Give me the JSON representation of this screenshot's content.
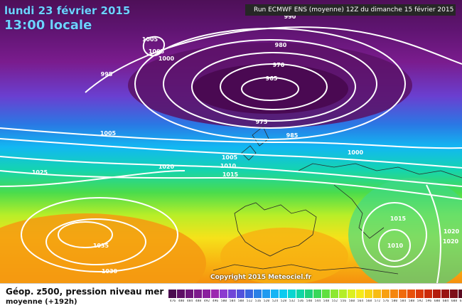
{
  "header": {
    "date": "lundi 23 février 2015",
    "time": "13:00 locale",
    "run": "Run ECMWF ENS (moyenne) 12Z du dimanche 15 février 2015"
  },
  "map": {
    "isobar_labels": [
      "990",
      "1005",
      "1005",
      "1000",
      "995",
      "980",
      "970",
      "965",
      "975",
      "985",
      "1005",
      "1005",
      "1010",
      "1015",
      "1020",
      "1025",
      "1000",
      "1015",
      "1010",
      "1020",
      "1020",
      "1035",
      "1030"
    ],
    "copyright": "Copyright 2015 Meteociel.fr"
  },
  "legend": {
    "title": "Géop. z500, pression niveau mer",
    "subtitle": "moyenne  (+192h)",
    "colors": [
      "#4a0a4f",
      "#5e0e66",
      "#6e147a",
      "#7d1a8c",
      "#8a1f9e",
      "#9c27b0",
      "#8c3bd0",
      "#7046d8",
      "#5252dc",
      "#3a66e0",
      "#2a80e6",
      "#1f9af0",
      "#14b4f5",
      "#0ccbf0",
      "#0ad6d0",
      "#10d6a6",
      "#1ed27c",
      "#38d85a",
      "#60e040",
      "#8ce830",
      "#b4ee28",
      "#dcf020",
      "#f6ea18",
      "#f8d414",
      "#f8bc12",
      "#f8a010",
      "#f5860e",
      "#f06a0c",
      "#e8500a",
      "#dc3a0a",
      "#cc2a0a",
      "#b41c0c",
      "#9a1412",
      "#7e0e18",
      "#5c0a20"
    ],
    "ticks": [
      "476",
      "480",
      "484",
      "488",
      "492",
      "496",
      "500",
      "504",
      "508",
      "512",
      "516",
      "520",
      "524",
      "528",
      "532",
      "536",
      "540",
      "544",
      "548",
      "552",
      "556",
      "560",
      "564",
      "568",
      "572",
      "576",
      "580",
      "584",
      "588",
      "592",
      "596",
      "600",
      "604",
      "608",
      "612"
    ]
  }
}
